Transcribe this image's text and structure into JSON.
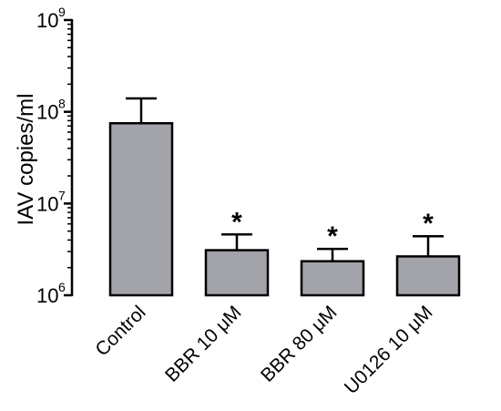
{
  "chart_data": {
    "type": "bar",
    "ylabel": "IAV copies/ml",
    "yscale": "log",
    "ylim": [
      1000000,
      1000000000
    ],
    "yticks": [
      {
        "base": "10",
        "exp": "6",
        "value": 1000000
      },
      {
        "base": "10",
        "exp": "7",
        "value": 10000000
      },
      {
        "base": "10",
        "exp": "8",
        "value": 100000000
      },
      {
        "base": "10",
        "exp": "9",
        "value": 1000000000
      }
    ],
    "categories": [
      "Control",
      "BBR  10 μM",
      "BBR 80 μM",
      "U0126 10 μM"
    ],
    "values": [
      75000000,
      3100000,
      2350000,
      2650000
    ],
    "error_upper": [
      140000000,
      4600000,
      3200000,
      4400000
    ],
    "significance": [
      "",
      "*",
      "*",
      "*"
    ],
    "bar_color": "#a3a3aa",
    "grid": false,
    "legend": "none"
  }
}
